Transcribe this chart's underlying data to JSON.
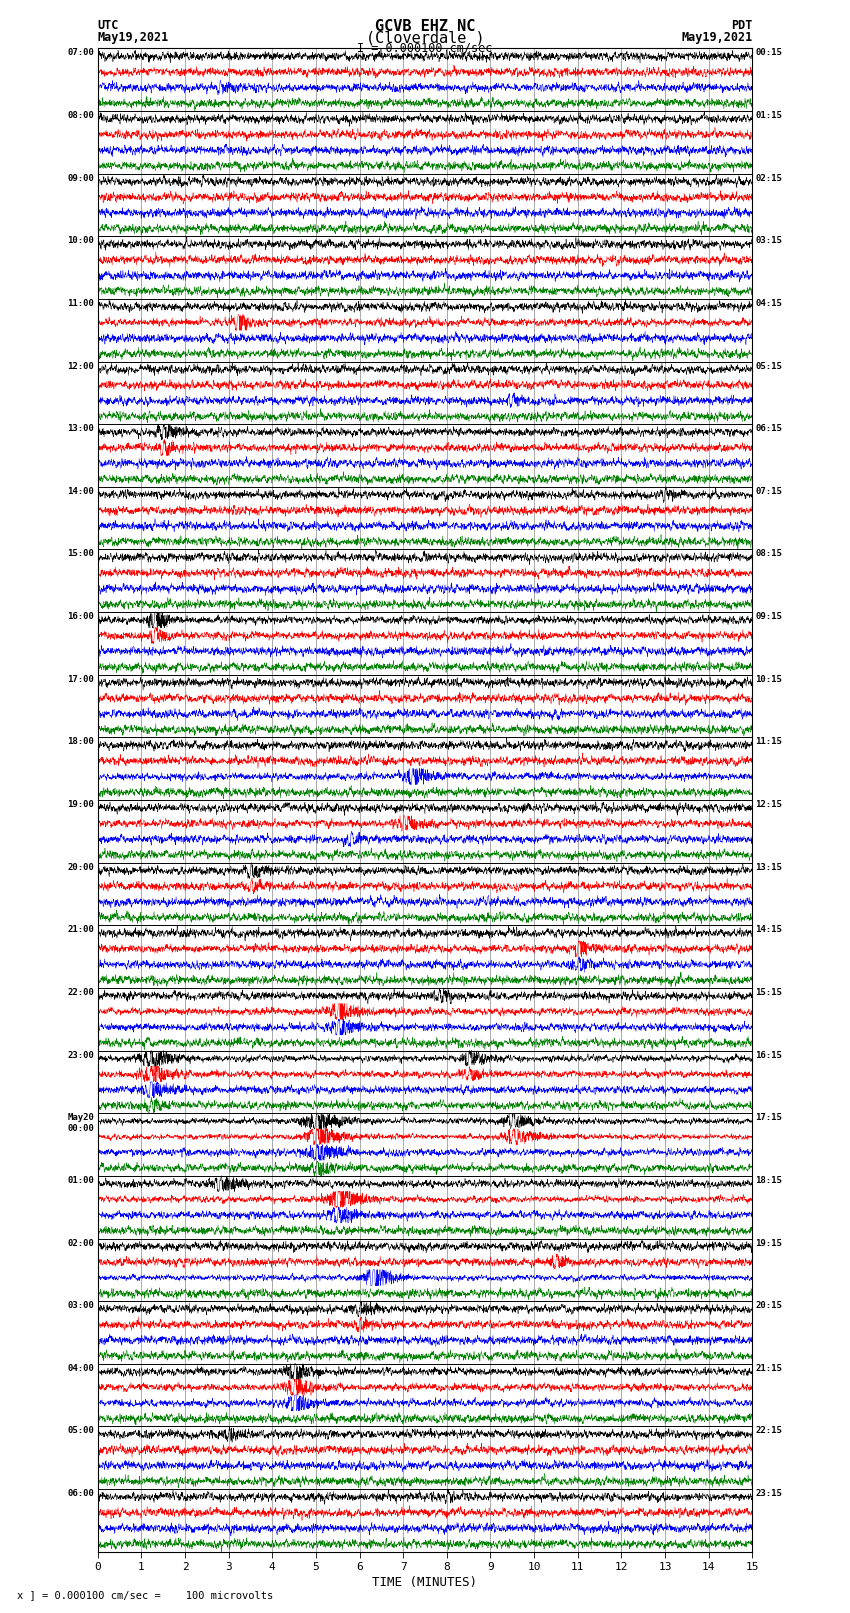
{
  "title_line1": "GCVB EHZ NC",
  "title_line2": "(Cloverdale )",
  "scale_text": "I = 0.000100 cm/sec",
  "left_label_line1": "UTC",
  "left_label_line2": "May19,2021",
  "right_label_line1": "PDT",
  "right_label_line2": "May19,2021",
  "xlabel": "TIME (MINUTES)",
  "bottom_note": "x ] = 0.000100 cm/sec =    100 microvolts",
  "background_color": "#ffffff",
  "grid_color": "#888888",
  "colors": [
    "black",
    "red",
    "blue",
    "green"
  ],
  "utc_labels": [
    "07:00",
    "08:00",
    "09:00",
    "10:00",
    "11:00",
    "12:00",
    "13:00",
    "14:00",
    "15:00",
    "16:00",
    "17:00",
    "18:00",
    "19:00",
    "20:00",
    "21:00",
    "22:00",
    "23:00",
    "May20\n00:00",
    "01:00",
    "02:00",
    "03:00",
    "04:00",
    "05:00",
    "06:00"
  ],
  "pdt_labels": [
    "00:15",
    "01:15",
    "02:15",
    "03:15",
    "04:15",
    "05:15",
    "06:15",
    "07:15",
    "08:15",
    "09:15",
    "10:15",
    "11:15",
    "12:15",
    "13:15",
    "14:15",
    "15:15",
    "16:15",
    "17:15",
    "18:15",
    "19:15",
    "20:15",
    "21:15",
    "22:15",
    "23:15"
  ],
  "num_rows": 24,
  "traces_per_row": 4,
  "xmin": 0,
  "xmax": 15,
  "xticks": [
    0,
    1,
    2,
    3,
    4,
    5,
    6,
    7,
    8,
    9,
    10,
    11,
    12,
    13,
    14,
    15
  ],
  "noise_levels": [
    0.18,
    0.18,
    0.18,
    0.18,
    0.18,
    0.18,
    0.22,
    0.2,
    0.18,
    0.2,
    0.18,
    0.18,
    0.22,
    0.22,
    0.22,
    0.25,
    0.3,
    0.35,
    0.42,
    0.3,
    0.25,
    0.35,
    0.25,
    0.22
  ],
  "trace_noise_factors": [
    1.0,
    0.9,
    1.1,
    0.7
  ],
  "events": [
    {
      "row": 0,
      "trace": 2,
      "time": 2.8,
      "amp": 1.2,
      "dur": 0.3
    },
    {
      "row": 4,
      "trace": 1,
      "time": 3.2,
      "amp": 2.5,
      "dur": 0.25
    },
    {
      "row": 5,
      "trace": 2,
      "time": 9.5,
      "amp": 1.5,
      "dur": 0.2
    },
    {
      "row": 6,
      "trace": 0,
      "time": 1.5,
      "amp": 1.8,
      "dur": 0.4
    },
    {
      "row": 6,
      "trace": 1,
      "time": 1.5,
      "amp": 1.5,
      "dur": 0.35
    },
    {
      "row": 7,
      "trace": 0,
      "time": 13.0,
      "amp": 1.2,
      "dur": 0.3
    },
    {
      "row": 9,
      "trace": 0,
      "time": 1.3,
      "amp": 2.5,
      "dur": 0.35
    },
    {
      "row": 9,
      "trace": 1,
      "time": 1.3,
      "amp": 2.0,
      "dur": 0.3
    },
    {
      "row": 11,
      "trace": 2,
      "time": 7.2,
      "amp": 3.0,
      "dur": 0.4
    },
    {
      "row": 12,
      "trace": 1,
      "time": 7.0,
      "amp": 1.8,
      "dur": 0.4
    },
    {
      "row": 12,
      "trace": 2,
      "time": 5.8,
      "amp": 1.5,
      "dur": 0.35
    },
    {
      "row": 13,
      "trace": 0,
      "time": 3.5,
      "amp": 1.5,
      "dur": 0.4
    },
    {
      "row": 13,
      "trace": 1,
      "time": 3.5,
      "amp": 1.3,
      "dur": 0.35
    },
    {
      "row": 14,
      "trace": 1,
      "time": 11.0,
      "amp": 1.8,
      "dur": 0.4
    },
    {
      "row": 14,
      "trace": 2,
      "time": 11.0,
      "amp": 1.5,
      "dur": 0.35
    },
    {
      "row": 15,
      "trace": 0,
      "time": 7.8,
      "amp": 1.5,
      "dur": 0.4
    },
    {
      "row": 15,
      "trace": 1,
      "time": 5.5,
      "amp": 2.5,
      "dur": 0.5
    },
    {
      "row": 15,
      "trace": 2,
      "time": 5.5,
      "amp": 2.0,
      "dur": 0.45
    },
    {
      "row": 16,
      "trace": 0,
      "time": 1.2,
      "amp": 2.5,
      "dur": 0.6
    },
    {
      "row": 16,
      "trace": 1,
      "time": 1.2,
      "amp": 2.2,
      "dur": 0.55
    },
    {
      "row": 16,
      "trace": 2,
      "time": 1.2,
      "amp": 2.0,
      "dur": 0.5
    },
    {
      "row": 16,
      "trace": 3,
      "time": 1.2,
      "amp": 1.5,
      "dur": 0.4
    },
    {
      "row": 16,
      "trace": 0,
      "time": 8.5,
      "amp": 1.8,
      "dur": 0.5
    },
    {
      "row": 16,
      "trace": 1,
      "time": 8.5,
      "amp": 1.5,
      "dur": 0.45
    },
    {
      "row": 17,
      "trace": 0,
      "time": 5.0,
      "amp": 2.5,
      "dur": 0.7
    },
    {
      "row": 17,
      "trace": 1,
      "time": 5.0,
      "amp": 3.0,
      "dur": 0.7
    },
    {
      "row": 17,
      "trace": 2,
      "time": 5.0,
      "amp": 2.0,
      "dur": 0.6
    },
    {
      "row": 17,
      "trace": 3,
      "time": 5.0,
      "amp": 1.5,
      "dur": 0.5
    },
    {
      "row": 17,
      "trace": 0,
      "time": 9.5,
      "amp": 2.0,
      "dur": 0.6
    },
    {
      "row": 17,
      "trace": 1,
      "time": 9.5,
      "amp": 2.5,
      "dur": 0.6
    },
    {
      "row": 18,
      "trace": 0,
      "time": 2.8,
      "amp": 1.8,
      "dur": 0.5
    },
    {
      "row": 18,
      "trace": 1,
      "time": 5.5,
      "amp": 2.8,
      "dur": 0.6
    },
    {
      "row": 18,
      "trace": 2,
      "time": 5.5,
      "amp": 2.0,
      "dur": 0.5
    },
    {
      "row": 19,
      "trace": 2,
      "time": 6.3,
      "amp": 4.5,
      "dur": 0.4
    },
    {
      "row": 19,
      "trace": 1,
      "time": 10.5,
      "amp": 1.5,
      "dur": 0.4
    },
    {
      "row": 20,
      "trace": 0,
      "time": 6.0,
      "amp": 1.5,
      "dur": 0.4
    },
    {
      "row": 20,
      "trace": 1,
      "time": 6.0,
      "amp": 1.2,
      "dur": 0.35
    },
    {
      "row": 21,
      "trace": 0,
      "time": 4.5,
      "amp": 2.0,
      "dur": 0.5
    },
    {
      "row": 21,
      "trace": 1,
      "time": 4.5,
      "amp": 2.5,
      "dur": 0.5
    },
    {
      "row": 21,
      "trace": 2,
      "time": 4.5,
      "amp": 2.0,
      "dur": 0.45
    },
    {
      "row": 22,
      "trace": 0,
      "time": 3.0,
      "amp": 1.3,
      "dur": 0.4
    },
    {
      "row": 23,
      "trace": 0,
      "time": 8.0,
      "amp": 1.2,
      "dur": 0.3
    }
  ]
}
